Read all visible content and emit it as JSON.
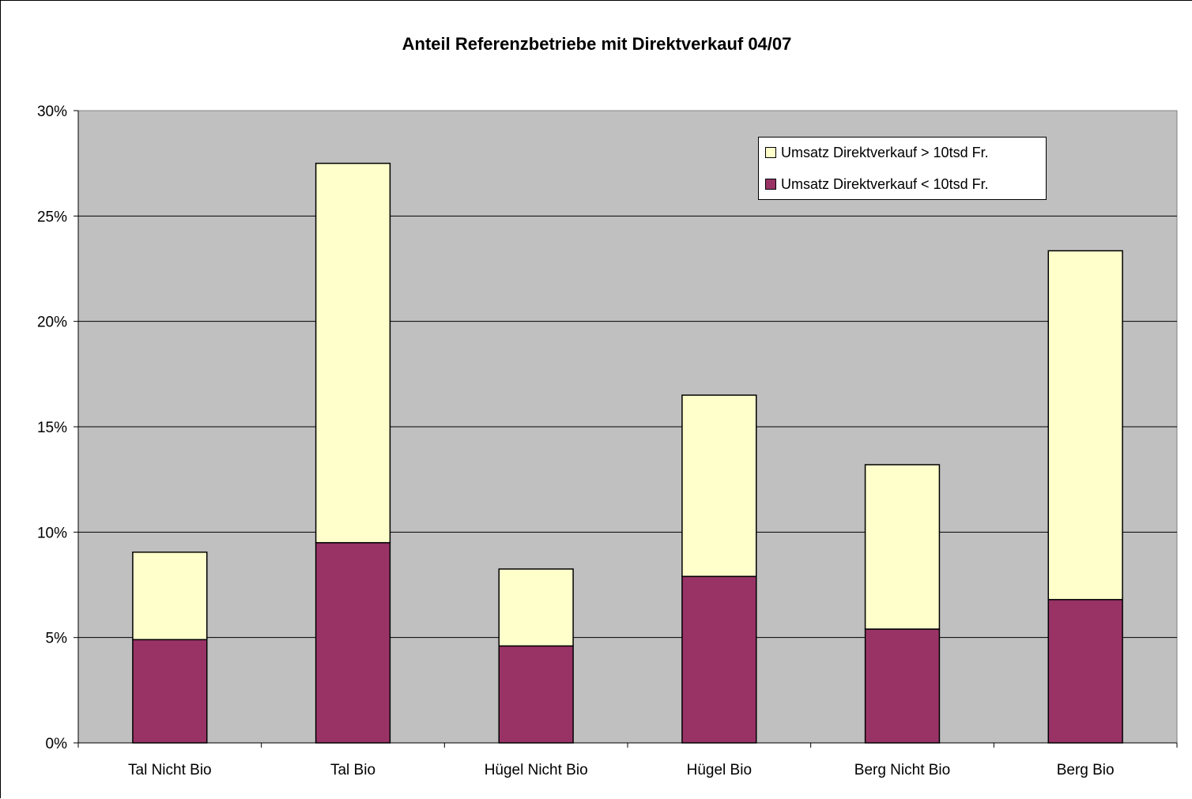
{
  "chart_data": {
    "type": "bar",
    "stacked": true,
    "title": "Anteil Referenzbetriebe mit Direktverkauf 04/07",
    "xlabel": "",
    "ylabel": "",
    "categories": [
      "Tal Nicht Bio",
      "Tal Bio",
      "Hügel Nicht Bio",
      "Hügel Bio",
      "Berg Nicht Bio",
      "Berg Bio"
    ],
    "series": [
      {
        "name": "Umsatz Direktverkauf < 10tsd Fr.",
        "color": "#993366",
        "values": [
          4.9,
          9.5,
          4.6,
          7.9,
          5.4,
          6.8
        ]
      },
      {
        "name": "Umsatz Direktverkauf > 10tsd Fr.",
        "color": "#FFFFCC",
        "values": [
          4.15,
          18.0,
          3.65,
          8.6,
          7.8,
          16.55
        ]
      }
    ],
    "ylim": [
      0,
      30
    ],
    "yticks": [
      "0%",
      "5%",
      "10%",
      "15%",
      "20%",
      "25%",
      "30%"
    ],
    "grid": true,
    "plot_background": "#C0C0C0",
    "legend_position": "top-right"
  }
}
